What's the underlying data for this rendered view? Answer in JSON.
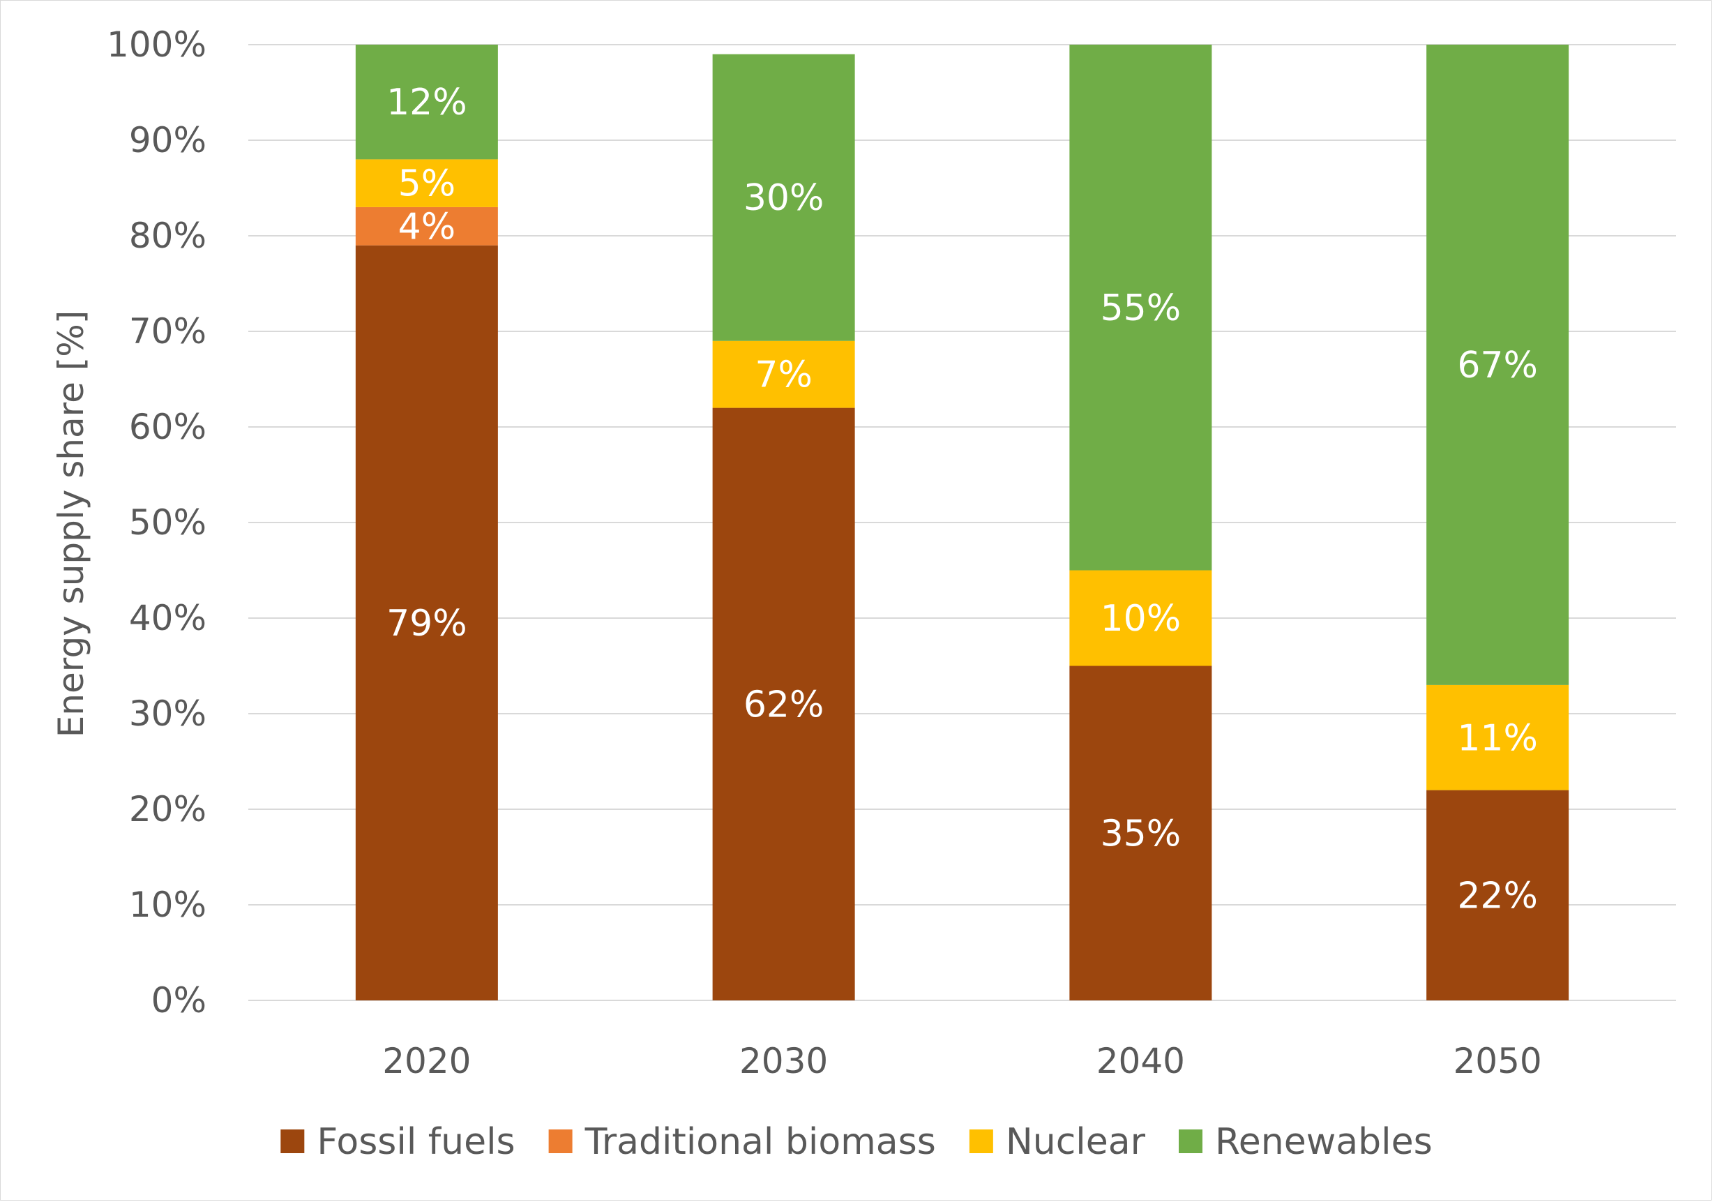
{
  "chart_data": {
    "type": "bar",
    "stacked": true,
    "categories": [
      "2020",
      "2030",
      "2040",
      "2050"
    ],
    "series": [
      {
        "name": "Fossil fuels",
        "color": "#9C460E",
        "values": [
          79,
          62,
          35,
          22
        ],
        "labels": [
          "79%",
          "62%",
          "35%",
          "22%"
        ]
      },
      {
        "name": "Traditional biomass",
        "color": "#ED7D31",
        "values": [
          4,
          0,
          0,
          0
        ],
        "labels": [
          "4%",
          "",
          "",
          ""
        ]
      },
      {
        "name": "Nuclear",
        "color": "#FFC000",
        "values": [
          5,
          7,
          10,
          11
        ],
        "labels": [
          "5%",
          "7%",
          "10%",
          "11%"
        ]
      },
      {
        "name": "Renewables",
        "color": "#70AD47",
        "values": [
          12,
          30,
          55,
          67
        ],
        "labels": [
          "12%",
          "30%",
          "55%",
          "67%"
        ]
      }
    ],
    "xlabel": "",
    "ylabel": "Energy supply share [%]",
    "ylim": [
      0,
      100
    ],
    "yticks": [
      "0%",
      "10%",
      "20%",
      "30%",
      "40%",
      "50%",
      "60%",
      "70%",
      "80%",
      "90%",
      "100%"
    ],
    "grid": true,
    "legend_position": "bottom"
  }
}
